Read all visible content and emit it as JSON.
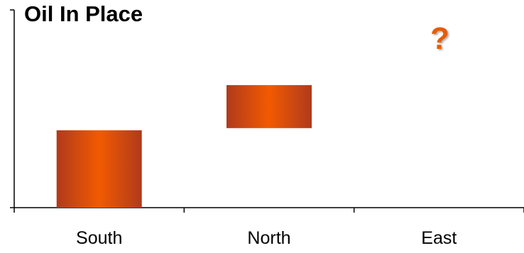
{
  "chart_data": {
    "type": "bar",
    "title": "Oil In Place",
    "categories": [
      "South",
      "North",
      "East"
    ],
    "bars": [
      {
        "category": "South",
        "low": 0,
        "high": 1.8
      },
      {
        "category": "North",
        "low": 1.85,
        "high": 2.85
      },
      {
        "category": "East",
        "low": null,
        "high": null
      }
    ],
    "annotations": [
      {
        "category": "East",
        "text": "?"
      }
    ],
    "xlabel": "",
    "ylabel": "",
    "ylim": [
      0,
      4.6
    ],
    "grid": false,
    "legend": "none"
  },
  "colors": {
    "bar_edge": "#b03a1c",
    "bar_center": "#f25a00",
    "question_mark": "#e65c00",
    "axis": "#000000"
  }
}
